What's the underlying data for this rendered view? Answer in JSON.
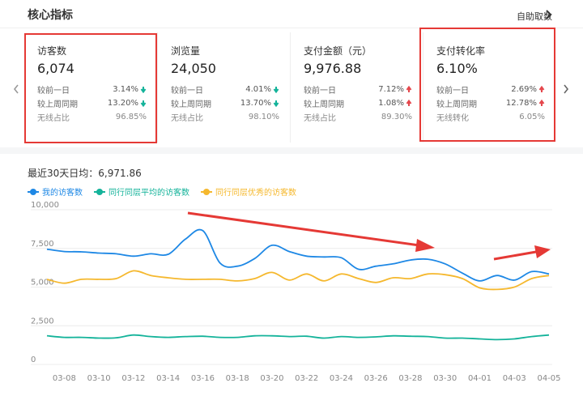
{
  "header": {
    "title": "核心指标",
    "action_label": "自助取数"
  },
  "cards": [
    {
      "name": "访客数",
      "value": "6,074",
      "rows": [
        {
          "label": "较前一日",
          "value": "3.14%",
          "trend": "down"
        },
        {
          "label": "较上周同期",
          "value": "13.20%",
          "trend": "down"
        },
        {
          "label": "无线占比",
          "value": "96.85%",
          "trend": ""
        }
      ]
    },
    {
      "name": "浏览量",
      "value": "24,050",
      "rows": [
        {
          "label": "较前一日",
          "value": "4.01%",
          "trend": "down"
        },
        {
          "label": "较上周同期",
          "value": "13.70%",
          "trend": "down"
        },
        {
          "label": "无线占比",
          "value": "98.10%",
          "trend": ""
        }
      ]
    },
    {
      "name": "支付金额（元）",
      "value": "9,976.88",
      "rows": [
        {
          "label": "较前一日",
          "value": "7.12%",
          "trend": "up"
        },
        {
          "label": "较上周同期",
          "value": "1.08%",
          "trend": "up"
        },
        {
          "label": "无线占比",
          "value": "89.30%",
          "trend": ""
        }
      ]
    },
    {
      "name": "支付转化率",
      "value": "6.10%",
      "rows": [
        {
          "label": "较前一日",
          "value": "2.69%",
          "trend": "up"
        },
        {
          "label": "较上周同期",
          "value": "12.78%",
          "trend": "up"
        },
        {
          "label": "无线转化",
          "value": "6.05%",
          "trend": ""
        }
      ]
    }
  ],
  "colors": {
    "down": "#14b39a",
    "up": "#e5484d",
    "series1": "#1e88e5",
    "series2": "#14b39a",
    "series3": "#f5b82e",
    "highlight": "#e53935"
  },
  "summary": {
    "text": "最近30天日均：6,971.86"
  },
  "legend": [
    "我的访客数",
    "同行同层平均的访客数",
    "同行同层优秀的访客数"
  ],
  "chart_data": {
    "type": "line",
    "ylim": [
      0,
      10000
    ],
    "yticks": [
      "0",
      "2,500",
      "5,000",
      "7,500",
      "10,000"
    ],
    "ytick_values": [
      0,
      2500,
      5000,
      7500,
      10000
    ],
    "xtick_labels": [
      "03-08",
      "03-10",
      "03-12",
      "03-14",
      "03-16",
      "03-18",
      "03-20",
      "03-22",
      "03-24",
      "03-26",
      "03-28",
      "03-30",
      "04-01",
      "04-03",
      "04-05"
    ],
    "x": [
      "03-07",
      "03-08",
      "03-09",
      "03-10",
      "03-11",
      "03-12",
      "03-13",
      "03-14",
      "03-15",
      "03-16",
      "03-17",
      "03-18",
      "03-19",
      "03-20",
      "03-21",
      "03-22",
      "03-23",
      "03-24",
      "03-25",
      "03-26",
      "03-27",
      "03-28",
      "03-29",
      "03-30",
      "03-31",
      "04-01",
      "04-02",
      "04-03",
      "04-04",
      "04-05"
    ],
    "series": [
      {
        "name": "我的访客数",
        "values": [
          7450,
          7300,
          7280,
          7200,
          7150,
          7000,
          7150,
          7120,
          8100,
          8650,
          6550,
          6350,
          6850,
          7700,
          7300,
          7000,
          6950,
          6900,
          6150,
          6350,
          6500,
          6750,
          6800,
          6500,
          5900,
          5400,
          5750,
          5450,
          6000,
          5850
        ]
      },
      {
        "name": "同行同层平均的访客数",
        "values": [
          1850,
          1750,
          1750,
          1700,
          1720,
          1900,
          1800,
          1750,
          1800,
          1820,
          1750,
          1750,
          1850,
          1850,
          1800,
          1820,
          1700,
          1800,
          1750,
          1780,
          1850,
          1820,
          1800,
          1700,
          1700,
          1650,
          1600,
          1650,
          1800,
          1900
        ]
      },
      {
        "name": "同行同层优秀的访客数",
        "values": [
          5500,
          5250,
          5500,
          5500,
          5550,
          6050,
          5750,
          5600,
          5500,
          5500,
          5500,
          5400,
          5550,
          5950,
          5450,
          5850,
          5400,
          5850,
          5550,
          5300,
          5600,
          5550,
          5850,
          5800,
          5550,
          4950,
          4850,
          5000,
          5550,
          5750
        ]
      }
    ]
  }
}
